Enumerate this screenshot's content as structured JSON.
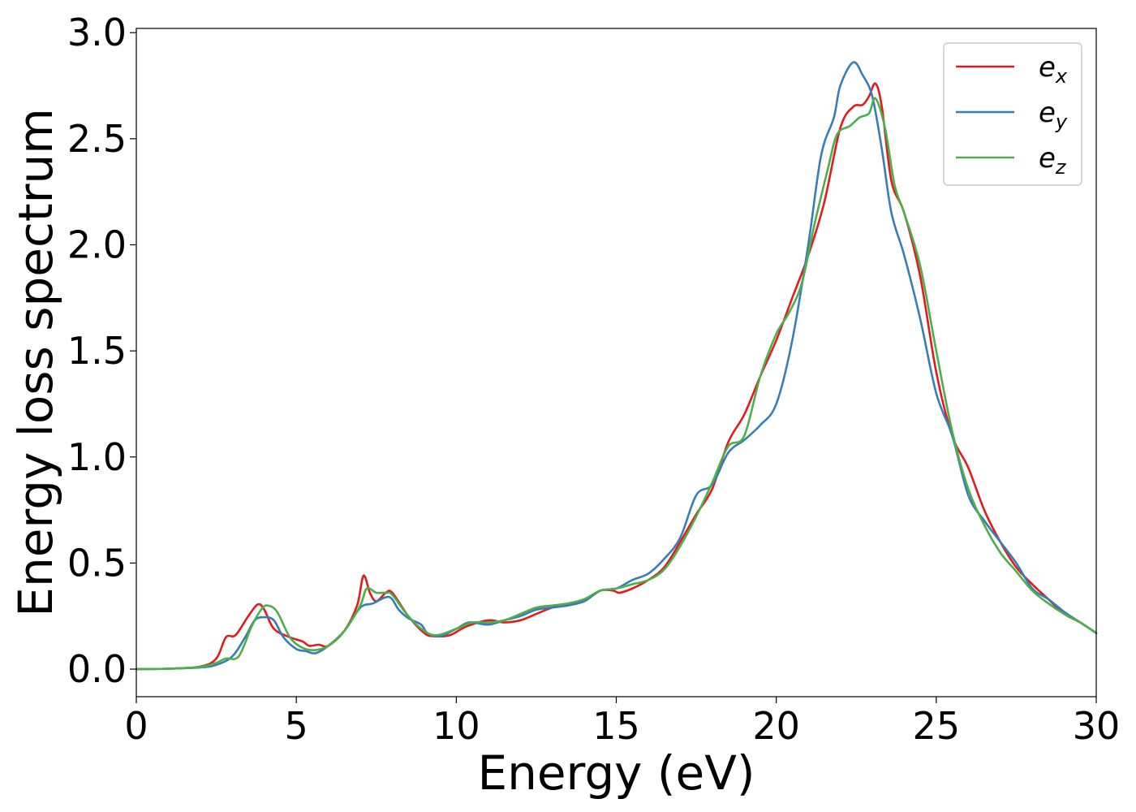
{
  "chart_data": {
    "type": "line",
    "xlabel": "Energy (eV)",
    "ylabel": "Energy loss spectrum",
    "xlim": [
      0,
      30
    ],
    "ylim": [
      -0.13,
      3.02
    ],
    "xticks": [
      0,
      5,
      10,
      15,
      20,
      25,
      30
    ],
    "xtick_labels": [
      "0",
      "5",
      "10",
      "15",
      "20",
      "25",
      "30"
    ],
    "yticks": [
      0.0,
      0.5,
      1.0,
      1.5,
      2.0,
      2.5,
      3.0
    ],
    "ytick_labels": [
      "0.0",
      "0.5",
      "1.0",
      "1.5",
      "2.0",
      "2.5",
      "3.0"
    ],
    "grid": false,
    "legend_position": "top-right",
    "series": [
      {
        "name": "e",
        "subscript": "x",
        "color": "#e41a1c",
        "points": [
          [
            0,
            0
          ],
          [
            1,
            0.002
          ],
          [
            2,
            0.012
          ],
          [
            2.5,
            0.05
          ],
          [
            2.8,
            0.15
          ],
          [
            3.1,
            0.16
          ],
          [
            3.5,
            0.25
          ],
          [
            3.8,
            0.305
          ],
          [
            4.0,
            0.28
          ],
          [
            4.3,
            0.19
          ],
          [
            4.8,
            0.15
          ],
          [
            5.2,
            0.13
          ],
          [
            5.4,
            0.11
          ],
          [
            5.7,
            0.115
          ],
          [
            6.0,
            0.11
          ],
          [
            6.5,
            0.18
          ],
          [
            6.9,
            0.3
          ],
          [
            7.1,
            0.44
          ],
          [
            7.3,
            0.36
          ],
          [
            7.5,
            0.32
          ],
          [
            7.8,
            0.36
          ],
          [
            8.0,
            0.36
          ],
          [
            8.5,
            0.25
          ],
          [
            9.0,
            0.17
          ],
          [
            9.3,
            0.155
          ],
          [
            9.8,
            0.16
          ],
          [
            10.3,
            0.2
          ],
          [
            11,
            0.23
          ],
          [
            11.5,
            0.22
          ],
          [
            12,
            0.23
          ],
          [
            12.5,
            0.26
          ],
          [
            13,
            0.29
          ],
          [
            13.5,
            0.305
          ],
          [
            14,
            0.32
          ],
          [
            14.5,
            0.37
          ],
          [
            14.9,
            0.37
          ],
          [
            15.1,
            0.36
          ],
          [
            15.5,
            0.38
          ],
          [
            16,
            0.42
          ],
          [
            16.5,
            0.48
          ],
          [
            17,
            0.6
          ],
          [
            17.5,
            0.73
          ],
          [
            18,
            0.85
          ],
          [
            18.5,
            1.07
          ],
          [
            19,
            1.2
          ],
          [
            19.5,
            1.38
          ],
          [
            20,
            1.55
          ],
          [
            20.5,
            1.75
          ],
          [
            21,
            1.95
          ],
          [
            21.5,
            2.2
          ],
          [
            22,
            2.55
          ],
          [
            22.4,
            2.65
          ],
          [
            22.7,
            2.66
          ],
          [
            22.9,
            2.7
          ],
          [
            23.1,
            2.76
          ],
          [
            23.3,
            2.65
          ],
          [
            23.6,
            2.3
          ],
          [
            24,
            2.15
          ],
          [
            24.5,
            1.85
          ],
          [
            25,
            1.4
          ],
          [
            25.5,
            1.1
          ],
          [
            26,
            0.95
          ],
          [
            26.5,
            0.75
          ],
          [
            27,
            0.6
          ],
          [
            27.5,
            0.48
          ],
          [
            28,
            0.4
          ],
          [
            28.5,
            0.33
          ],
          [
            29,
            0.26
          ],
          [
            29.5,
            0.22
          ],
          [
            30,
            0.17
          ]
        ]
      },
      {
        "name": "e",
        "subscript": "y",
        "color": "#377eb8",
        "points": [
          [
            0,
            0
          ],
          [
            1,
            0.002
          ],
          [
            2,
            0.008
          ],
          [
            2.5,
            0.02
          ],
          [
            3,
            0.06
          ],
          [
            3.4,
            0.15
          ],
          [
            3.7,
            0.23
          ],
          [
            4.0,
            0.245
          ],
          [
            4.3,
            0.23
          ],
          [
            4.6,
            0.15
          ],
          [
            5.0,
            0.095
          ],
          [
            5.3,
            0.085
          ],
          [
            5.6,
            0.075
          ],
          [
            6.0,
            0.11
          ],
          [
            6.5,
            0.18
          ],
          [
            7.0,
            0.29
          ],
          [
            7.4,
            0.31
          ],
          [
            7.9,
            0.34
          ],
          [
            8.2,
            0.28
          ],
          [
            8.5,
            0.24
          ],
          [
            8.9,
            0.21
          ],
          [
            9.1,
            0.17
          ],
          [
            9.5,
            0.155
          ],
          [
            10,
            0.19
          ],
          [
            10.4,
            0.22
          ],
          [
            11,
            0.21
          ],
          [
            11.5,
            0.23
          ],
          [
            12,
            0.25
          ],
          [
            12.5,
            0.28
          ],
          [
            13,
            0.29
          ],
          [
            13.5,
            0.3
          ],
          [
            14,
            0.32
          ],
          [
            14.5,
            0.37
          ],
          [
            15,
            0.38
          ],
          [
            15.5,
            0.42
          ],
          [
            16,
            0.45
          ],
          [
            16.5,
            0.52
          ],
          [
            17,
            0.62
          ],
          [
            17.5,
            0.82
          ],
          [
            18,
            0.87
          ],
          [
            18.5,
            1.02
          ],
          [
            19,
            1.08
          ],
          [
            19.5,
            1.15
          ],
          [
            20,
            1.25
          ],
          [
            20.5,
            1.55
          ],
          [
            21,
            2.0
          ],
          [
            21.4,
            2.42
          ],
          [
            21.8,
            2.6
          ],
          [
            22,
            2.75
          ],
          [
            22.4,
            2.86
          ],
          [
            22.7,
            2.8
          ],
          [
            23,
            2.7
          ],
          [
            23.3,
            2.45
          ],
          [
            23.6,
            2.15
          ],
          [
            24,
            1.95
          ],
          [
            24.5,
            1.65
          ],
          [
            25,
            1.3
          ],
          [
            25.5,
            1.1
          ],
          [
            26,
            0.82
          ],
          [
            26.5,
            0.7
          ],
          [
            27,
            0.6
          ],
          [
            27.5,
            0.5
          ],
          [
            28,
            0.38
          ],
          [
            28.5,
            0.33
          ],
          [
            29,
            0.27
          ],
          [
            29.5,
            0.22
          ],
          [
            30,
            0.17
          ]
        ]
      },
      {
        "name": "e",
        "subscript": "z",
        "color": "#4daf4a",
        "points": [
          [
            0,
            0
          ],
          [
            1,
            0.002
          ],
          [
            2,
            0.01
          ],
          [
            2.5,
            0.03
          ],
          [
            2.8,
            0.05
          ],
          [
            3.2,
            0.06
          ],
          [
            3.6,
            0.2
          ],
          [
            3.9,
            0.28
          ],
          [
            4.1,
            0.3
          ],
          [
            4.4,
            0.27
          ],
          [
            4.8,
            0.15
          ],
          [
            5.2,
            0.1
          ],
          [
            5.6,
            0.09
          ],
          [
            6.0,
            0.11
          ],
          [
            6.5,
            0.18
          ],
          [
            7.0,
            0.3
          ],
          [
            7.2,
            0.38
          ],
          [
            7.5,
            0.36
          ],
          [
            7.8,
            0.36
          ],
          [
            8.0,
            0.35
          ],
          [
            8.5,
            0.25
          ],
          [
            9.0,
            0.18
          ],
          [
            9.4,
            0.16
          ],
          [
            10,
            0.19
          ],
          [
            10.5,
            0.22
          ],
          [
            11,
            0.22
          ],
          [
            11.5,
            0.23
          ],
          [
            12,
            0.26
          ],
          [
            12.5,
            0.29
          ],
          [
            13,
            0.3
          ],
          [
            13.5,
            0.31
          ],
          [
            14,
            0.33
          ],
          [
            14.5,
            0.37
          ],
          [
            15,
            0.38
          ],
          [
            15.5,
            0.4
          ],
          [
            16,
            0.42
          ],
          [
            16.5,
            0.47
          ],
          [
            17,
            0.58
          ],
          [
            17.5,
            0.72
          ],
          [
            18,
            0.88
          ],
          [
            18.5,
            1.05
          ],
          [
            19,
            1.1
          ],
          [
            19.5,
            1.38
          ],
          [
            20,
            1.58
          ],
          [
            20.4,
            1.68
          ],
          [
            20.8,
            1.82
          ],
          [
            21.2,
            2.1
          ],
          [
            21.6,
            2.35
          ],
          [
            21.9,
            2.52
          ],
          [
            22.3,
            2.56
          ],
          [
            22.6,
            2.6
          ],
          [
            22.9,
            2.62
          ],
          [
            23.1,
            2.69
          ],
          [
            23.4,
            2.55
          ],
          [
            23.7,
            2.28
          ],
          [
            24,
            2.15
          ],
          [
            24.5,
            1.9
          ],
          [
            25,
            1.5
          ],
          [
            25.5,
            1.12
          ],
          [
            26,
            0.85
          ],
          [
            26.5,
            0.68
          ],
          [
            27,
            0.55
          ],
          [
            27.5,
            0.46
          ],
          [
            28,
            0.37
          ],
          [
            28.5,
            0.31
          ],
          [
            29,
            0.26
          ],
          [
            29.5,
            0.22
          ],
          [
            30,
            0.17
          ]
        ]
      }
    ]
  }
}
